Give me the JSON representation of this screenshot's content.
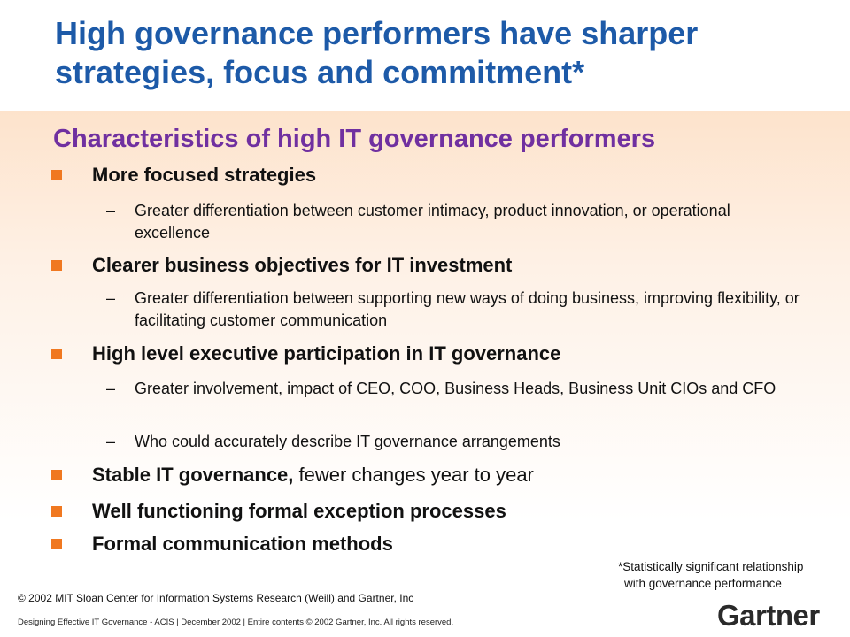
{
  "title": "High governance performers have sharper strategies, focus and commitment*",
  "subtitle": "Characteristics of high IT governance performers",
  "bullets": [
    {
      "bold": "More focused strategies",
      "rest": "",
      "subs": [
        "Greater differentiation between customer intimacy, product innovation, or operational excellence"
      ]
    },
    {
      "bold": "Clearer business objectives for IT investment",
      "rest": "",
      "subs": [
        "Greater differentiation between supporting new ways of doing business, improving flexibility, or facilitating customer communication"
      ]
    },
    {
      "bold": "High level executive participation in IT governance",
      "rest": "",
      "subs": [
        "Greater involvement, impact of CEO, COO, Business Heads, Business Unit CIOs and CFO",
        "Who could accurately describe IT governance arrangements"
      ]
    },
    {
      "bold": "Stable IT governance,",
      "rest": " fewer changes year to year",
      "subs": []
    },
    {
      "bold": "Well functioning formal exception processes",
      "rest": "",
      "subs": []
    },
    {
      "bold": "Formal communication methods",
      "rest": "",
      "subs": []
    }
  ],
  "dash": "–",
  "footnote": {
    "line1": "*Statistically significant relationship",
    "line2": "with governance performance"
  },
  "copyright": "© 2002 MIT Sloan Center for Information Systems Research (Weill) and Gartner, Inc",
  "footer": "Designing Effective IT Governance - ACIS | December 2002 | Entire contents © 2002 Gartner, Inc. All rights reserved.",
  "logo_text": "Gartner",
  "colors": {
    "title": "#1d5aa8",
    "subtitle": "#7030a0",
    "bullet_marker": "#f07820"
  }
}
